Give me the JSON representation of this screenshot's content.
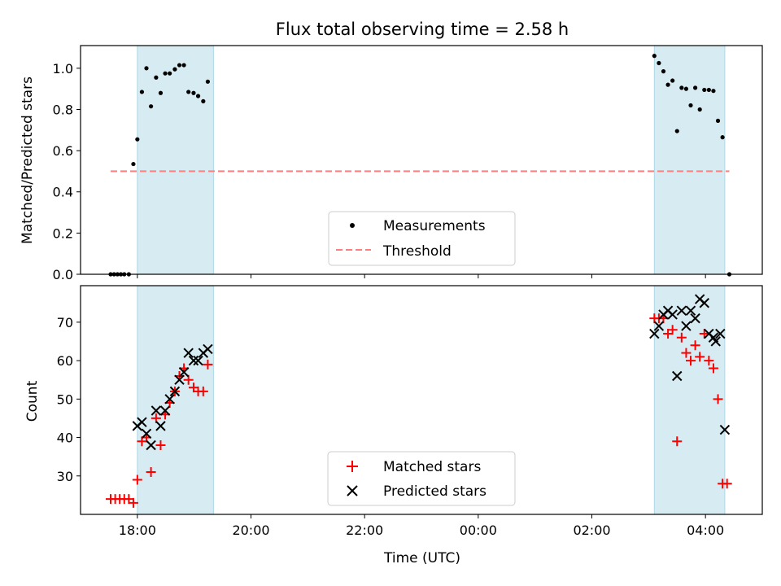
{
  "chart_data": [
    {
      "type": "scatter",
      "title": "Flux total observing time = 2.58 h",
      "xlabel": "",
      "ylabel": "Matched/Predicted stars",
      "x_unit": "hours since 00:00 UTC",
      "xlim": [
        -7.0,
        5.0
      ],
      "ylim": [
        0.0,
        1.11
      ],
      "yticks": [
        0.0,
        0.2,
        0.4,
        0.6,
        0.8,
        1.0
      ],
      "ytick_labels": [
        "0.0",
        "0.2",
        "0.4",
        "0.6",
        "0.8",
        "1.0"
      ],
      "grid": false,
      "legend_position": "lower-center",
      "shaded_intervals": [
        [
          -6.0,
          -4.66
        ],
        [
          3.1,
          4.34
        ]
      ],
      "series": [
        {
          "name": "Measurements",
          "kind": "scatter",
          "color": "#000000",
          "points": [
            [
              -6.47,
              0.0
            ],
            [
              -6.41,
              0.0
            ],
            [
              -6.35,
              0.0
            ],
            [
              -6.29,
              0.0
            ],
            [
              -6.23,
              0.0
            ],
            [
              -6.15,
              0.0
            ],
            [
              -6.07,
              0.535
            ],
            [
              -6.0,
              0.655
            ],
            [
              -5.92,
              0.885
            ],
            [
              -5.84,
              1.0
            ],
            [
              -5.76,
              0.815
            ],
            [
              -5.67,
              0.955
            ],
            [
              -5.59,
              0.88
            ],
            [
              -5.51,
              0.975
            ],
            [
              -5.43,
              0.975
            ],
            [
              -5.34,
              0.995
            ],
            [
              -5.26,
              1.015
            ],
            [
              -5.18,
              1.015
            ],
            [
              -5.1,
              0.885
            ],
            [
              -5.01,
              0.88
            ],
            [
              -4.93,
              0.865
            ],
            [
              -4.84,
              0.84
            ],
            [
              -4.76,
              0.935
            ],
            [
              3.1,
              1.06
            ],
            [
              3.18,
              1.025
            ],
            [
              3.26,
              0.985
            ],
            [
              3.34,
              0.92
            ],
            [
              3.42,
              0.94
            ],
            [
              3.5,
              0.695
            ],
            [
              3.58,
              0.905
            ],
            [
              3.66,
              0.9
            ],
            [
              3.74,
              0.82
            ],
            [
              3.82,
              0.905
            ],
            [
              3.9,
              0.8
            ],
            [
              3.98,
              0.895
            ],
            [
              4.06,
              0.895
            ],
            [
              4.14,
              0.89
            ],
            [
              4.22,
              0.745
            ],
            [
              4.3,
              0.665
            ],
            [
              4.42,
              0.0
            ]
          ]
        },
        {
          "name": "Threshold",
          "kind": "dashed-line",
          "color": "#ff7f7f",
          "points": [
            [
              -6.47,
              0.5
            ],
            [
              4.42,
              0.5
            ]
          ]
        }
      ]
    },
    {
      "type": "scatter",
      "title": "",
      "xlabel": "Time (UTC)",
      "ylabel": "Count",
      "x_unit": "hours since 00:00 UTC",
      "xlim": [
        -7.0,
        5.0
      ],
      "ylim": [
        20.0,
        79.5
      ],
      "xticks": [
        -6,
        -4,
        -2,
        0,
        2,
        4
      ],
      "xtick_labels": [
        "18:00",
        "20:00",
        "22:00",
        "00:00",
        "02:00",
        "04:00"
      ],
      "yticks": [
        30,
        40,
        50,
        60,
        70
      ],
      "ytick_labels": [
        "30",
        "40",
        "50",
        "60",
        "70"
      ],
      "grid": false,
      "legend_position": "lower-center",
      "shaded_intervals": [
        [
          -6.0,
          -4.66
        ],
        [
          3.1,
          4.34
        ]
      ],
      "series": [
        {
          "name": "Matched stars",
          "kind": "plus",
          "color": "#ff0000",
          "points": [
            [
              -6.47,
              24
            ],
            [
              -6.39,
              24
            ],
            [
              -6.31,
              24
            ],
            [
              -6.23,
              24
            ],
            [
              -6.15,
              24
            ],
            [
              -6.07,
              23
            ],
            [
              -6.0,
              29
            ],
            [
              -5.92,
              39
            ],
            [
              -5.84,
              40
            ],
            [
              -5.76,
              31
            ],
            [
              -5.67,
              45
            ],
            [
              -5.59,
              38
            ],
            [
              -5.51,
              46
            ],
            [
              -5.43,
              49
            ],
            [
              -5.34,
              52
            ],
            [
              -5.26,
              56
            ],
            [
              -5.18,
              58
            ],
            [
              -5.1,
              55
            ],
            [
              -5.01,
              53
            ],
            [
              -4.93,
              52
            ],
            [
              -4.84,
              52
            ],
            [
              -4.76,
              59
            ],
            [
              3.1,
              71
            ],
            [
              3.18,
              71
            ],
            [
              3.26,
              71
            ],
            [
              3.34,
              67
            ],
            [
              3.42,
              68
            ],
            [
              3.5,
              39
            ],
            [
              3.58,
              66
            ],
            [
              3.66,
              62
            ],
            [
              3.74,
              60
            ],
            [
              3.82,
              64
            ],
            [
              3.9,
              61
            ],
            [
              3.98,
              67
            ],
            [
              4.06,
              60
            ],
            [
              4.14,
              58
            ],
            [
              4.22,
              50
            ],
            [
              4.3,
              28
            ],
            [
              4.38,
              28
            ]
          ]
        },
        {
          "name": "Predicted stars",
          "kind": "x",
          "color": "#000000",
          "points": [
            [
              -6.0,
              43
            ],
            [
              -5.92,
              44
            ],
            [
              -5.84,
              41
            ],
            [
              -5.76,
              38
            ],
            [
              -5.67,
              47
            ],
            [
              -5.59,
              43
            ],
            [
              -5.51,
              47
            ],
            [
              -5.43,
              50
            ],
            [
              -5.34,
              52
            ],
            [
              -5.26,
              55
            ],
            [
              -5.18,
              57
            ],
            [
              -5.1,
              62
            ],
            [
              -5.01,
              60
            ],
            [
              -4.93,
              60
            ],
            [
              -4.84,
              62
            ],
            [
              -4.76,
              63
            ],
            [
              3.1,
              67
            ],
            [
              3.18,
              69
            ],
            [
              3.26,
              72
            ],
            [
              3.34,
              73
            ],
            [
              3.42,
              72
            ],
            [
              3.5,
              56
            ],
            [
              3.58,
              73
            ],
            [
              3.66,
              69
            ],
            [
              3.74,
              73
            ],
            [
              3.82,
              71
            ],
            [
              3.9,
              76
            ],
            [
              3.98,
              75
            ],
            [
              4.06,
              67
            ],
            [
              4.14,
              66
            ],
            [
              4.18,
              65
            ],
            [
              4.26,
              67
            ],
            [
              4.34,
              42
            ]
          ]
        }
      ]
    }
  ]
}
